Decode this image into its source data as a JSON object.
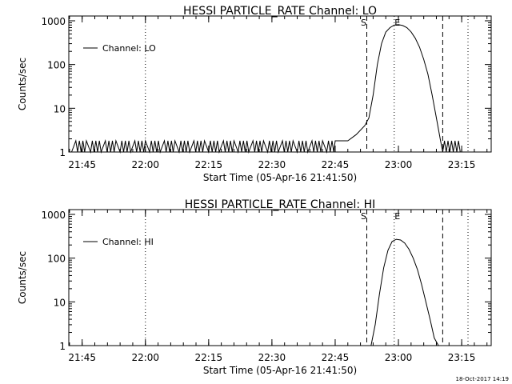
{
  "chart_data": [
    {
      "type": "line",
      "title": "HESSI PARTICLE_RATE Channel: LO",
      "xlabel": "Start Time (05-Apr-16 21:41:50)",
      "ylabel": "Counts/sec",
      "yscale": "log",
      "ylim": [
        1,
        1000
      ],
      "xlim": [
        "21:41:50",
        "23:22:00"
      ],
      "x_ticks": [
        "21:45",
        "22:00",
        "22:15",
        "22:30",
        "22:45",
        "23:00",
        "23:15"
      ],
      "y_ticks": [
        "1",
        "10",
        "100",
        "1000"
      ],
      "legend": {
        "label": "Channel: LO",
        "placement": "top-left"
      },
      "markers": [
        {
          "label": "S",
          "time": "22:52:30",
          "style": "dashed"
        },
        {
          "label": "E",
          "time": "22:59:00",
          "style": "dotted"
        },
        {
          "label": "",
          "time": "23:10:30",
          "style": "dashed"
        },
        {
          "label": "",
          "time": "22:00:00",
          "style": "dotted"
        },
        {
          "label": "",
          "time": "23:16:30",
          "style": "dotted"
        }
      ],
      "series": [
        {
          "name": "Channel: LO",
          "x": [
            "22:45",
            "22:48",
            "22:50",
            "22:52",
            "22:53",
            "22:54",
            "22:55",
            "22:56",
            "22:57",
            "22:58",
            "22:59",
            "23:00",
            "23:01",
            "23:02",
            "23:03",
            "23:04",
            "23:05",
            "23:06",
            "23:07",
            "23:08",
            "23:09",
            "23:10"
          ],
          "values": [
            1.8,
            1.8,
            2.5,
            4,
            6,
            20,
            100,
            300,
            550,
            700,
            800,
            820,
            780,
            700,
            560,
            400,
            250,
            130,
            60,
            20,
            6,
            1.8
          ],
          "pre_event": "noise alternating between 1 and 1.8 counts/sec from 21:42 to 22:45",
          "post_event": "noise between 1 and 1.8 counts/sec from 23:11 to 23:15"
        }
      ]
    },
    {
      "type": "line",
      "title": "HESSI PARTICLE_RATE Channel: HI",
      "xlabel": "Start Time (05-Apr-16 21:41:50)",
      "ylabel": "Counts/sec",
      "yscale": "log",
      "ylim": [
        1,
        1000
      ],
      "xlim": [
        "21:41:50",
        "23:22:00"
      ],
      "x_ticks": [
        "21:45",
        "22:00",
        "22:15",
        "22:30",
        "22:45",
        "23:00",
        "23:15"
      ],
      "y_ticks": [
        "1",
        "10",
        "100",
        "1000"
      ],
      "legend": {
        "label": "Channel: HI",
        "placement": "top-left"
      },
      "markers": [
        {
          "label": "S",
          "time": "22:52:30",
          "style": "dashed"
        },
        {
          "label": "E",
          "time": "22:59:00",
          "style": "dotted"
        },
        {
          "label": "",
          "time": "23:10:30",
          "style": "dashed"
        },
        {
          "label": "",
          "time": "22:00:00",
          "style": "dotted"
        },
        {
          "label": "",
          "time": "23:16:30",
          "style": "dotted"
        }
      ],
      "series": [
        {
          "name": "Channel: HI",
          "x": [
            "22:53:30",
            "22:54:30",
            "22:55:30",
            "22:56:30",
            "22:57:30",
            "22:58:30",
            "22:59:30",
            "23:00:30",
            "23:01:30",
            "23:02:30",
            "23:03:30",
            "23:04:30",
            "23:05:30",
            "23:06:30",
            "23:07:30",
            "23:08:30",
            "23:09:30"
          ],
          "values": [
            1,
            3,
            15,
            60,
            150,
            240,
            270,
            260,
            220,
            160,
            100,
            55,
            25,
            10,
            4,
            1.5,
            1
          ]
        }
      ]
    }
  ],
  "footer": {
    "timestamp": "18-Oct-2017 14:19"
  }
}
